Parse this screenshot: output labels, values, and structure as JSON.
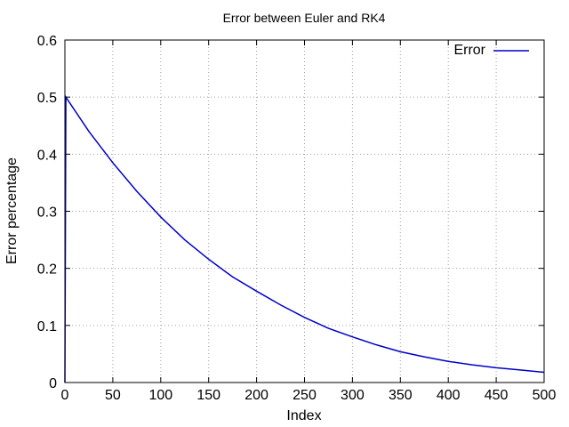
{
  "chart_data": {
    "type": "line",
    "title": "Error between Euler and RK4",
    "xlabel": "Index",
    "ylabel": "Error percentage",
    "xlim": [
      0,
      500
    ],
    "ylim": [
      0,
      0.6
    ],
    "x_ticks": [
      0,
      50,
      100,
      150,
      200,
      250,
      300,
      350,
      400,
      450,
      500
    ],
    "y_ticks": [
      0,
      0.1,
      0.2,
      0.3,
      0.4,
      0.5,
      0.6
    ],
    "grid": true,
    "legend_position": "top-right",
    "series": [
      {
        "name": "Error",
        "color": "#0000c8",
        "x": [
          0,
          1,
          25,
          50,
          75,
          100,
          125,
          150,
          175,
          200,
          225,
          250,
          275,
          300,
          325,
          350,
          375,
          400,
          425,
          450,
          475,
          500
        ],
        "y": [
          0,
          0.5,
          0.44,
          0.385,
          0.335,
          0.29,
          0.25,
          0.216,
          0.185,
          0.16,
          0.136,
          0.114,
          0.095,
          0.08,
          0.066,
          0.054,
          0.045,
          0.037,
          0.031,
          0.026,
          0.022,
          0.018
        ]
      }
    ]
  }
}
